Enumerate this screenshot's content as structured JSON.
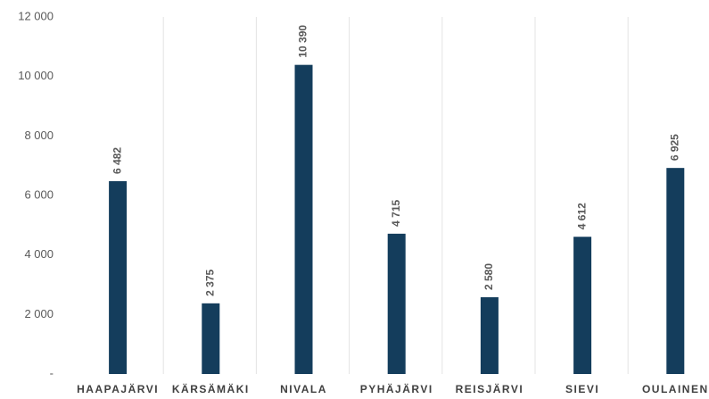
{
  "chart_data": {
    "type": "bar",
    "categories": [
      "HAAPAJÄRVI",
      "KÄRSÄMÄKI",
      "NIVALA",
      "PYHÄJÄRVI",
      "REISJÄRVI",
      "SIEVI",
      "OULAINEN"
    ],
    "values": [
      6482,
      2375,
      10390,
      4715,
      2580,
      4612,
      6925
    ],
    "value_labels": [
      "6 482",
      "2 375",
      "10 390",
      "4 715",
      "2 580",
      "4 612",
      "6 925"
    ],
    "color": "#143d5c",
    "ylim": [
      0,
      12000
    ],
    "yticks": [
      {
        "value": 0,
        "label": "-"
      },
      {
        "value": 2000,
        "label": "2 000"
      },
      {
        "value": 4000,
        "label": "4 000"
      },
      {
        "value": 6000,
        "label": "6 000"
      },
      {
        "value": 8000,
        "label": "8 000"
      },
      {
        "value": 10000,
        "label": "10 000"
      },
      {
        "value": 12000,
        "label": "12 000"
      }
    ]
  }
}
